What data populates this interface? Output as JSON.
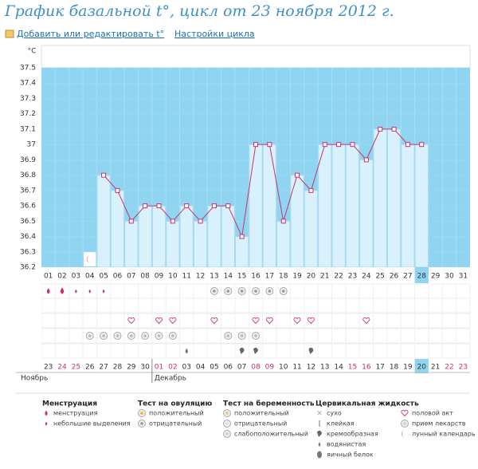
{
  "header": {
    "title": "График базальной t°, цикл от 23 ноября 2012 г.",
    "links": [
      "Добавить или редактировать t°",
      "Настройки цикла"
    ]
  },
  "chart_data": {
    "type": "line",
    "y_unit": "°C",
    "categories": [
      "01",
      "02",
      "03",
      "04",
      "05",
      "06",
      "07",
      "08",
      "09",
      "10",
      "11",
      "12",
      "13",
      "14",
      "15",
      "16",
      "17",
      "18",
      "19",
      "20",
      "21",
      "22",
      "23",
      "24",
      "25",
      "26",
      "27",
      "28",
      "29",
      "30",
      "31"
    ],
    "values": [
      null,
      null,
      null,
      null,
      36.8,
      36.7,
      36.5,
      36.6,
      36.6,
      36.5,
      36.6,
      36.5,
      36.6,
      36.6,
      36.4,
      37.0,
      37.0,
      36.5,
      36.8,
      36.7,
      37.0,
      37.0,
      37.0,
      36.9,
      37.1,
      37.1,
      37.0,
      37.0,
      null,
      null,
      null
    ],
    "color": "#c8336a",
    "bar_color": "#d8f1fc",
    "ylim": [
      36.2,
      37.5
    ],
    "yticks": [
      36.2,
      36.3,
      36.4,
      36.5,
      36.6,
      36.7,
      36.8,
      36.9,
      37,
      37.1,
      37.2,
      37.3,
      37.4,
      37.5
    ],
    "grid": true,
    "dates": [
      "23",
      "24",
      "25",
      "26",
      "27",
      "28",
      "29",
      "30",
      "01",
      "02",
      "03",
      "04",
      "05",
      "06",
      "07",
      "08",
      "09",
      "10",
      "11",
      "12",
      "13",
      "14",
      "15",
      "16",
      "17",
      "18",
      "19",
      "20",
      "21",
      "22",
      "23"
    ],
    "months": [
      "Ноябрь",
      "Декабрь"
    ]
  },
  "legend": [
    {
      "title": "Менструация",
      "items": [
        "менструация",
        "небольшие выделения"
      ]
    },
    {
      "title": "Тест на овуляцию",
      "items": [
        "положительный",
        "отрицательный"
      ]
    },
    {
      "title": "Тест на беременность",
      "items": [
        "положительный",
        "отрицательный",
        "слабоположительный"
      ]
    },
    {
      "title": "Цервикальная жидкость",
      "items": [
        "сухо",
        "клейкая",
        "кремообразная",
        "водянистая",
        "яичный белок"
      ]
    },
    {
      "title": null,
      "items": [
        "половой акт",
        "прием лекарств",
        "лунный календарь"
      ]
    }
  ]
}
